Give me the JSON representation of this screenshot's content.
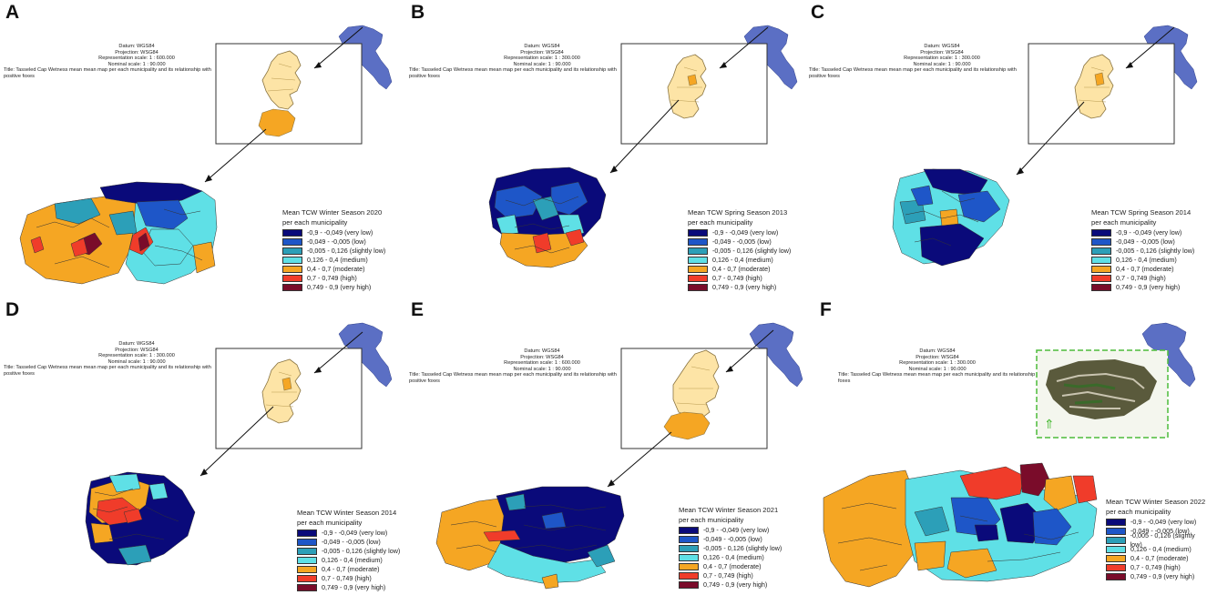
{
  "palette": {
    "very_low": "#0a0a7a",
    "low": "#1e56c8",
    "slightly_low": "#2c9fb8",
    "medium": "#5fe0e6",
    "moderate": "#f5a623",
    "high": "#f03c2a",
    "very_high": "#7a0c2a",
    "region_fill": "#fde4a6",
    "italy_fill": "#5b6fc4"
  },
  "legend_items": [
    "-0,9 - -0,049 (very low)",
    "-0,049 - -0,005 (low)",
    "-0,005 - 0,126 (slightly low)",
    "0,126 - 0,4 (medium)",
    "0,4 - 0,7 (moderate)",
    "0,7 - 0,749 (high)",
    "0,749 - 0,9 (very high)"
  ],
  "legend_items_f": [
    "-0,9 - -0,049 (very low)",
    "-0,049 - -0,005 (low)",
    "-0,005 - 0,126 (slightly low)",
    "0,126 - 0,4 (medium)",
    "0,4 - 0,7 (moderate)",
    "0,7 - 0,749 (high)",
    "0,749 - 0,9 (very high)"
  ],
  "legend_subtitle": "per each municipality",
  "meta": {
    "datum": "Datum: WGS84",
    "projection": "Projection: WSG84",
    "nominal": "Nominal scale: 1 : 90.000",
    "title": "Title: Tasseled Cap Wetness mean mean map per each municipality and its relationship with positive foxes",
    "title_f": "Title: Tasseled Cap Wetness mean mean map per each municipality and its relationship with positive foxes"
  },
  "panels": [
    {
      "letter": "A",
      "representation": "Representation scale: 1 : 600.000",
      "legend_title": "Mean TCW Winter Season 2020"
    },
    {
      "letter": "B",
      "representation": "Representation scale: 1 : 300.000",
      "legend_title": "Mean TCW Spring   Season 2013"
    },
    {
      "letter": "C",
      "representation": "Representation scale: 1 : 300.000",
      "legend_title": "Mean TCW Spring   Season 2014"
    },
    {
      "letter": "D",
      "representation": "Representation scale: 1 : 300.000",
      "legend_title": "Mean TCW Winter Season 2014"
    },
    {
      "letter": "E",
      "representation": "Representation scale: 1 : 600.000",
      "legend_title": "Mean TCW Winter Season 2021"
    },
    {
      "letter": "F",
      "representation": "Representation scale: 1 : 300.000",
      "legend_title": "Mean TCW Winter Season 2022"
    }
  ]
}
